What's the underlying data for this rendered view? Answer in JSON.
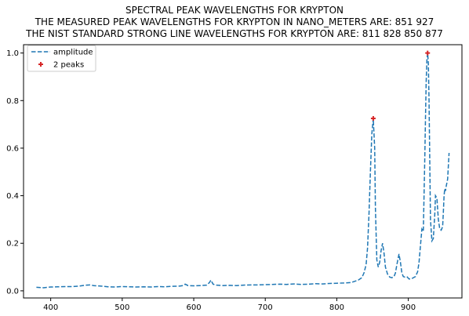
{
  "chart_data": {
    "type": "line",
    "title_lines": [
      "SPECTRAL PEAK WAVELENGTHS FOR KRYPTON",
      "THE MEASURED PEAK WAVELENGTHS FOR KRYPTON IN NANO_METERS ARE: 851 927",
      "THE NIST STANDARD STRONG LINE WAVELENGTHS FOR KRYPTON ARE: 811 828 850 877"
    ],
    "xlim": [
      362,
      975
    ],
    "ylim": [
      -0.03,
      1.035
    ],
    "xticks": [
      400,
      500,
      600,
      700,
      800,
      900
    ],
    "yticks": [
      0.0,
      0.2,
      0.4,
      0.6,
      0.8,
      1.0
    ],
    "ytick_labels": [
      "0.0",
      "0.2",
      "0.4",
      "0.6",
      "0.8",
      "1.0"
    ],
    "grid": false,
    "legend_position": "upper-left",
    "series": [
      {
        "name": "amplitude",
        "style": "dashed",
        "color": "#1f77b4",
        "x": [
          380,
          390,
          400,
          410,
          420,
          430,
          440,
          450,
          455,
          460,
          470,
          480,
          490,
          500,
          510,
          520,
          530,
          540,
          550,
          560,
          570,
          580,
          585,
          588,
          592,
          600,
          610,
          618,
          622,
          624,
          627,
          632,
          640,
          650,
          660,
          670,
          680,
          690,
          700,
          710,
          720,
          730,
          740,
          750,
          760,
          770,
          780,
          790,
          800,
          810,
          820,
          830,
          835,
          838,
          841,
          843,
          845,
          847,
          849,
          851,
          853,
          854,
          856,
          858,
          860,
          862,
          864,
          866,
          868,
          871,
          874,
          877,
          880,
          882,
          884,
          886,
          887,
          889,
          891,
          893,
          895,
          898,
          901,
          904,
          907,
          910,
          913,
          915,
          917,
          919,
          921,
          922,
          923,
          924,
          925,
          926,
          927,
          928,
          929,
          930,
          931,
          933,
          935,
          937,
          938,
          940,
          942,
          944,
          946,
          948,
          949,
          950,
          951,
          952,
          953,
          955,
          957
        ],
        "y": [
          0.015,
          0.013,
          0.016,
          0.017,
          0.018,
          0.018,
          0.02,
          0.024,
          0.025,
          0.022,
          0.02,
          0.017,
          0.016,
          0.018,
          0.017,
          0.016,
          0.017,
          0.016,
          0.018,
          0.017,
          0.019,
          0.02,
          0.022,
          0.028,
          0.022,
          0.021,
          0.022,
          0.024,
          0.035,
          0.045,
          0.028,
          0.024,
          0.022,
          0.023,
          0.022,
          0.024,
          0.025,
          0.025,
          0.026,
          0.027,
          0.028,
          0.027,
          0.029,
          0.027,
          0.028,
          0.03,
          0.029,
          0.031,
          0.032,
          0.033,
          0.035,
          0.045,
          0.055,
          0.075,
          0.11,
          0.18,
          0.32,
          0.5,
          0.66,
          0.725,
          0.6,
          0.35,
          0.13,
          0.1,
          0.12,
          0.17,
          0.2,
          0.16,
          0.1,
          0.07,
          0.058,
          0.055,
          0.06,
          0.075,
          0.11,
          0.14,
          0.155,
          0.12,
          0.075,
          0.06,
          0.058,
          0.06,
          0.05,
          0.05,
          0.055,
          0.06,
          0.08,
          0.12,
          0.19,
          0.26,
          0.25,
          0.4,
          0.55,
          0.72,
          0.88,
          0.97,
          1.0,
          0.96,
          0.8,
          0.55,
          0.3,
          0.21,
          0.22,
          0.32,
          0.4,
          0.39,
          0.3,
          0.26,
          0.255,
          0.27,
          0.33,
          0.4,
          0.43,
          0.42,
          0.44,
          0.47,
          0.58
        ]
      },
      {
        "name": "2 peaks",
        "style": "marker-plus",
        "color": "#d62728",
        "x": [
          851,
          927
        ],
        "y": [
          0.725,
          1.0
        ]
      }
    ]
  }
}
